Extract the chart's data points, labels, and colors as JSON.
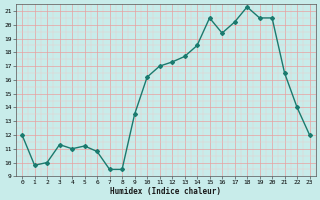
{
  "x": [
    0,
    1,
    2,
    3,
    4,
    5,
    6,
    7,
    8,
    9,
    10,
    11,
    12,
    13,
    14,
    15,
    16,
    17,
    18,
    19,
    20,
    21,
    22,
    23
  ],
  "y": [
    12,
    9.8,
    10,
    11.3,
    11,
    11.2,
    10.8,
    9.5,
    9.5,
    13.5,
    16.2,
    17,
    17.3,
    17.7,
    18.5,
    20.5,
    19.4,
    20.2,
    21.3,
    20.5,
    20.5,
    16.5,
    14,
    12
  ],
  "line_color": "#1a7a6e",
  "marker": "D",
  "marker_size": 2,
  "bg_color": "#c8ecea",
  "grid_major_color": "#e8a0a0",
  "grid_minor_color": "#f0c8c8",
  "xlabel": "Humidex (Indice chaleur)",
  "ylim": [
    9,
    21.5
  ],
  "xlim": [
    -0.5,
    23.5
  ],
  "yticks": [
    9,
    10,
    11,
    12,
    13,
    14,
    15,
    16,
    17,
    18,
    19,
    20,
    21
  ],
  "xticks": [
    0,
    1,
    2,
    3,
    4,
    5,
    6,
    7,
    8,
    9,
    10,
    11,
    12,
    13,
    14,
    15,
    16,
    17,
    18,
    19,
    20,
    21,
    22,
    23
  ]
}
